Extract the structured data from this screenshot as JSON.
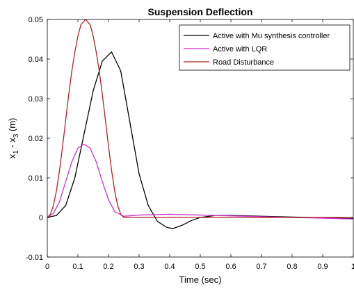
{
  "chart_data": {
    "type": "line",
    "title": "Suspension Deflection",
    "xlabel": "Time (sec)",
    "ylabel": {
      "base1": "x",
      "sub1": "1",
      "mid": " - x",
      "sub2": "3",
      "tail": " (m)"
    },
    "xlim": [
      0,
      1
    ],
    "ylim": [
      -0.01,
      0.05
    ],
    "xticks": [
      0,
      0.1,
      0.2,
      0.3,
      0.4,
      0.5,
      0.6,
      0.7,
      0.8,
      0.9,
      1
    ],
    "xtick_labels": [
      "0",
      "0.1",
      "0.2",
      "0.3",
      "0.4",
      "0.5",
      "0.6",
      "0.7",
      "0.8",
      "0.9",
      "1"
    ],
    "yticks": [
      -0.01,
      0,
      0.01,
      0.02,
      0.03,
      0.04,
      0.05
    ],
    "ytick_labels": [
      "-0.01",
      "0",
      "0.01",
      "0.02",
      "0.03",
      "0.04",
      "0.05"
    ],
    "grid": false,
    "legend_position": "top-right",
    "series": [
      {
        "name": "Active with Mu synthesis controller",
        "color": "#000000",
        "x": [
          0,
          0.03,
          0.06,
          0.09,
          0.12,
          0.15,
          0.18,
          0.21,
          0.24,
          0.27,
          0.3,
          0.33,
          0.36,
          0.39,
          0.41,
          0.44,
          0.47,
          0.5,
          0.55,
          0.6,
          0.7,
          0.8,
          0.9,
          1.0
        ],
        "y": [
          0,
          0.0005,
          0.003,
          0.01,
          0.021,
          0.032,
          0.0395,
          0.0418,
          0.037,
          0.024,
          0.011,
          0.003,
          -0.001,
          -0.0025,
          -0.0028,
          -0.002,
          -0.0008,
          0.0,
          0.0005,
          0.0005,
          0.0003,
          0.0001,
          -0.0001,
          -0.0003
        ]
      },
      {
        "name": "Active with LQR",
        "color": "#cc33cc",
        "x": [
          0,
          0.02,
          0.04,
          0.06,
          0.08,
          0.1,
          0.12,
          0.14,
          0.16,
          0.18,
          0.2,
          0.22,
          0.25,
          0.3,
          0.4,
          0.5,
          0.6,
          0.7,
          0.8,
          0.9,
          1.0
        ],
        "y": [
          0,
          0.001,
          0.004,
          0.009,
          0.014,
          0.0175,
          0.0185,
          0.0175,
          0.014,
          0.009,
          0.0045,
          0.0015,
          0.0003,
          0.0006,
          0.0008,
          0.0006,
          0.0004,
          0.0002,
          0.0,
          -0.0002,
          -0.0004
        ]
      },
      {
        "name": "Road Disturbance",
        "color": "#b22222",
        "x": [
          0,
          0.01,
          0.02,
          0.03,
          0.04,
          0.05,
          0.06,
          0.07,
          0.08,
          0.09,
          0.1,
          0.11,
          0.125,
          0.14,
          0.15,
          0.16,
          0.17,
          0.18,
          0.19,
          0.2,
          0.21,
          0.22,
          0.23,
          0.24,
          0.25,
          0.3,
          0.4,
          0.5,
          0.6,
          0.7,
          0.8,
          0.9,
          1.0
        ],
        "y": [
          0,
          0.0008,
          0.003,
          0.0068,
          0.0119,
          0.018,
          0.0245,
          0.031,
          0.0369,
          0.0417,
          0.0458,
          0.0487,
          0.05,
          0.0487,
          0.0458,
          0.0417,
          0.0369,
          0.031,
          0.0245,
          0.018,
          0.0119,
          0.0068,
          0.003,
          0.0008,
          0,
          0,
          0,
          0,
          0,
          0,
          0,
          0,
          0
        ]
      }
    ]
  }
}
